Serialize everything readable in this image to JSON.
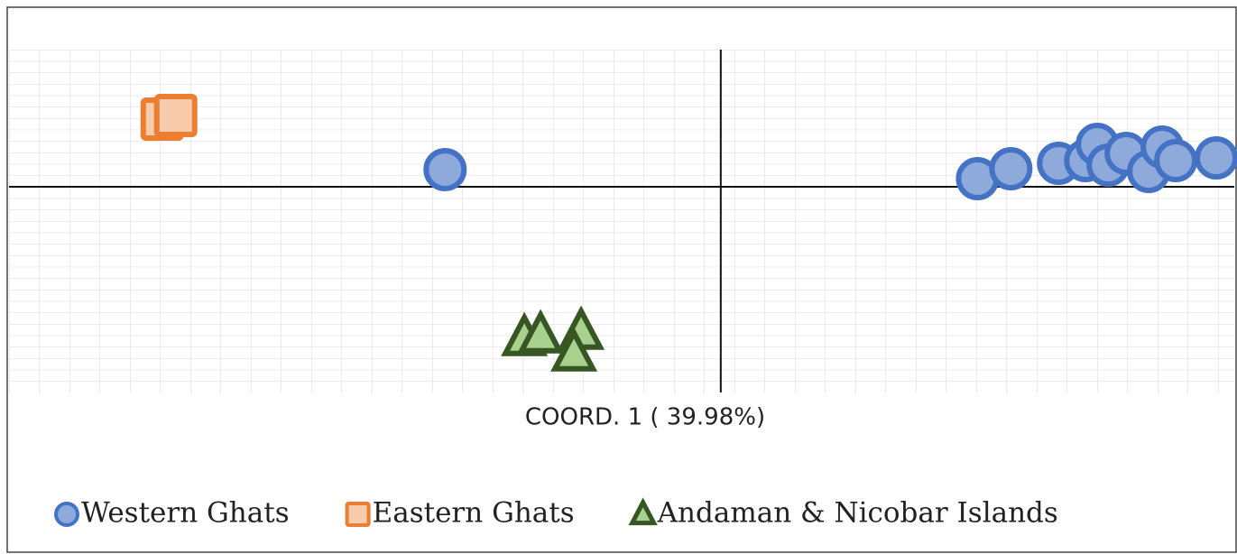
{
  "chart_data": {
    "type": "scatter",
    "x_label": "COORD. 1 ( 39.98%)",
    "xlim": [
      -0.79,
      0.57
    ],
    "ylim": [
      -0.228,
      0.152
    ],
    "grid": true,
    "series": [
      {
        "name": "Western Ghats",
        "color": "#8eaadb",
        "edge": "#4472c4",
        "marker": "circle",
        "x": [
          -0.306,
          0.285,
          0.322,
          0.375,
          0.405,
          0.418,
          0.43,
          0.45,
          0.475,
          0.49,
          0.505,
          0.55
        ],
        "y": [
          0.019,
          0.009,
          0.02,
          0.026,
          0.029,
          0.047,
          0.024,
          0.037,
          0.017,
          0.044,
          0.029,
          0.032
        ]
      },
      {
        "name": "Eastern Ghats",
        "color": "#f8cbad",
        "edge": "#ed7d31",
        "marker": "square",
        "x": [
          -0.62,
          -0.605
        ],
        "y": [
          0.075,
          0.079
        ]
      },
      {
        "name": "Andaman & Nicobar Islands",
        "color": "#a9d18e",
        "edge": "#375623",
        "marker": "triangle",
        "x": [
          -0.218,
          -0.2,
          -0.155,
          -0.163
        ],
        "y": [
          -0.168,
          -0.165,
          -0.161,
          -0.185
        ]
      }
    ]
  }
}
